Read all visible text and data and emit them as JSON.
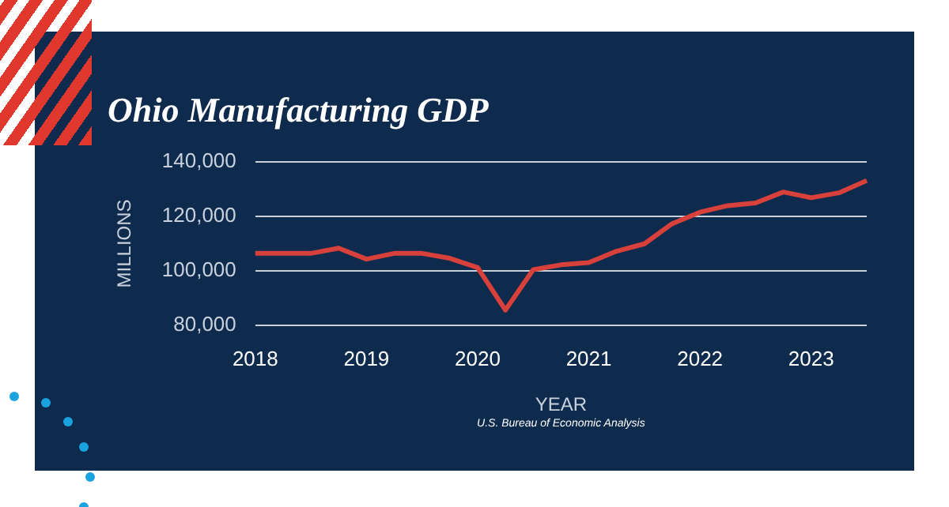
{
  "chart_data": {
    "type": "line",
    "title": "Ohio Manufacturing GDP",
    "xlabel": "YEAR",
    "ylabel": "MILLIONS",
    "annotations": [
      "U.S. Bureau of Economic Analysis"
    ],
    "categories": [
      "2018",
      null,
      null,
      null,
      "2019",
      null,
      null,
      null,
      "2020",
      null,
      null,
      null,
      "2021",
      null,
      null,
      null,
      "2022",
      null,
      null,
      null,
      "2023",
      null,
      null
    ],
    "series": [
      {
        "color": "#d8403b",
        "values": [
          106400,
          106400,
          106400,
          108300,
          104300,
          106400,
          106400,
          104600,
          101200,
          85600,
          100400,
          102200,
          103000,
          107200,
          109900,
          117300,
          121500,
          123900,
          124900,
          128900,
          126800,
          128600,
          133100
        ]
      }
    ],
    "ylim": [
      80000,
      140000
    ],
    "yticks": [
      {
        "value": 80000,
        "label": "80,000"
      },
      {
        "value": 100000,
        "label": "100,000"
      },
      {
        "value": 120000,
        "label": "120,000"
      },
      {
        "value": 140000,
        "label": "140,000"
      }
    ],
    "grid": "y",
    "legend": false,
    "marker": "none",
    "line_style": "solid"
  }
}
